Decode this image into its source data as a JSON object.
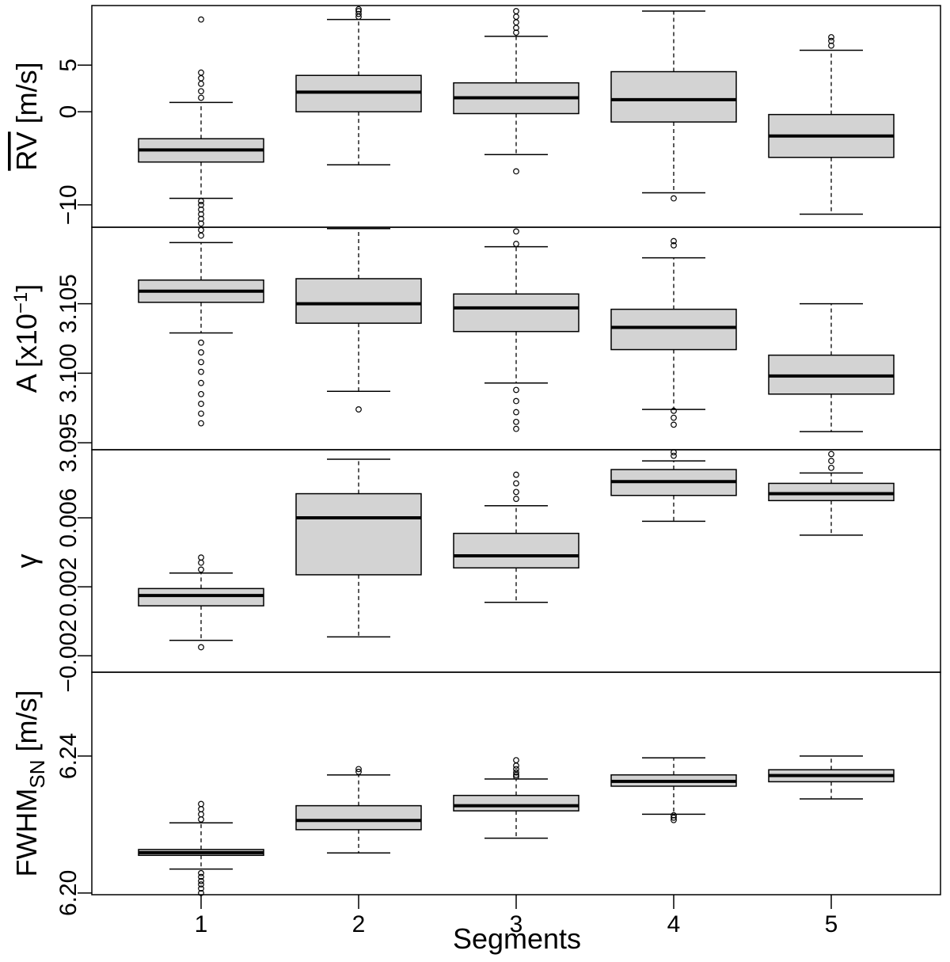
{
  "chart_data": {
    "type": "box",
    "title": "",
    "xlabel": "Segments",
    "categories": [
      "1",
      "2",
      "3",
      "4",
      "5"
    ],
    "panels": [
      {
        "id": "rv",
        "ylabel_main": "RV",
        "ylabel_unit": " [m/s]",
        "ylim": [
          -12.4,
          11.4
        ],
        "ticks": [
          -10,
          0,
          5
        ],
        "tick_labels": [
          "−10",
          "0",
          "5"
        ],
        "boxes": [
          {
            "category": "1",
            "whisker_low": -9.3,
            "q1": -5.4,
            "median": -4.1,
            "q3": -2.9,
            "whisker_high": 1.0,
            "outliers": [
              -12.0,
              -11.5,
              -11.0,
              -10.5,
              -10.0,
              -9.6,
              1.5,
              2.2,
              3.0,
              3.6,
              4.2,
              9.9
            ]
          },
          {
            "category": "2",
            "whisker_low": -5.7,
            "q1": 0.0,
            "median": 2.1,
            "q3": 3.9,
            "whisker_high": 9.9,
            "outliers": [
              10.2,
              10.5,
              10.8,
              11.0
            ]
          },
          {
            "category": "3",
            "whisker_low": -4.6,
            "q1": -0.2,
            "median": 1.5,
            "q3": 3.1,
            "whisker_high": 8.1,
            "outliers": [
              -6.4,
              8.5,
              9.0,
              9.6,
              10.2,
              10.8
            ]
          },
          {
            "category": "4",
            "whisker_low": -8.7,
            "q1": -1.1,
            "median": 1.3,
            "q3": 4.3,
            "whisker_high": 10.8,
            "outliers": [
              -9.3
            ]
          },
          {
            "category": "5",
            "whisker_low": -11.0,
            "q1": -4.9,
            "median": -2.6,
            "q3": -0.3,
            "whisker_high": 6.6,
            "outliers": [
              7.1,
              7.6,
              8.0
            ]
          }
        ]
      },
      {
        "id": "A",
        "ylabel_main": "A [x10",
        "ylabel_sup": "−1",
        "ylabel_end": "]",
        "ylim": [
          3.0945,
          3.1105
        ],
        "ticks": [
          3.095,
          3.1,
          3.105
        ],
        "tick_labels": [
          "3.095",
          "3.100",
          "3.105"
        ],
        "boxes": [
          {
            "category": "1",
            "whisker_low": 3.1029,
            "q1": 3.1051,
            "median": 3.1059,
            "q3": 3.1067,
            "whisker_high": 3.1094,
            "outliers": [
              3.0964,
              3.0971,
              3.0978,
              3.0985,
              3.0993,
              3.1001,
              3.1008,
              3.1015,
              3.1022,
              3.1099,
              3.1103
            ]
          },
          {
            "category": "2",
            "whisker_low": 3.0987,
            "q1": 3.1036,
            "median": 3.105,
            "q3": 3.1068,
            "whisker_high": 3.1104,
            "outliers": [
              3.0974
            ]
          },
          {
            "category": "3",
            "whisker_low": 3.0993,
            "q1": 3.103,
            "median": 3.1047,
            "q3": 3.1057,
            "whisker_high": 3.1091,
            "outliers": [
              3.096,
              3.0965,
              3.0972,
              3.098,
              3.0988,
              3.1093,
              3.1102
            ]
          },
          {
            "category": "4",
            "whisker_low": 3.0974,
            "q1": 3.1017,
            "median": 3.1033,
            "q3": 3.1046,
            "whisker_high": 3.1083,
            "outliers": [
              3.0963,
              3.0968,
              3.0973,
              3.1092,
              3.1095
            ]
          },
          {
            "category": "5",
            "whisker_low": 3.0958,
            "q1": 3.0985,
            "median": 3.0998,
            "q3": 3.1013,
            "whisker_high": 3.105,
            "outliers": []
          }
        ]
      },
      {
        "id": "gamma",
        "ylabel_main": "γ",
        "ylim": [
          -0.00295,
          0.00995
        ],
        "ticks": [
          -0.002,
          0.002,
          0.006
        ],
        "tick_labels": [
          "−0.002",
          "0.002",
          "0.006"
        ],
        "boxes": [
          {
            "category": "1",
            "whisker_low": -0.0011,
            "q1": 0.0009,
            "median": 0.0015,
            "q3": 0.0019,
            "whisker_high": 0.0028,
            "outliers": [
              -0.0015,
              0.003,
              0.0034,
              0.0037
            ]
          },
          {
            "category": "2",
            "whisker_low": -0.0009,
            "q1": 0.0027,
            "median": 0.006,
            "q3": 0.0074,
            "whisker_high": 0.0094,
            "outliers": []
          },
          {
            "category": "3",
            "whisker_low": 0.0011,
            "q1": 0.0031,
            "median": 0.0038,
            "q3": 0.0051,
            "whisker_high": 0.0067,
            "outliers": [
              0.0071,
              0.0075,
              0.008,
              0.0085
            ]
          },
          {
            "category": "4",
            "whisker_low": 0.0058,
            "q1": 0.0073,
            "median": 0.0081,
            "q3": 0.0088,
            "whisker_high": 0.0093,
            "outliers": [
              0.0096,
              0.0098
            ]
          },
          {
            "category": "5",
            "whisker_low": 0.005,
            "q1": 0.007,
            "median": 0.0074,
            "q3": 0.008,
            "whisker_high": 0.0086,
            "outliers": [
              0.0089,
              0.0093,
              0.0097
            ]
          }
        ]
      },
      {
        "id": "fwhm",
        "ylabel_main": "FWHM",
        "ylabel_sub": "SN",
        "ylabel_unit": " [m/s]",
        "ylim": [
          6.1995,
          6.2645
        ],
        "ticks": [
          6.2,
          6.24
        ],
        "tick_labels": [
          "6.20",
          "6.24"
        ],
        "boxes": [
          {
            "category": "1",
            "whisker_low": 6.207,
            "q1": 6.211,
            "median": 6.2118,
            "q3": 6.2127,
            "whisker_high": 6.2205,
            "outliers": [
              6.2,
              6.2013,
              6.2025,
              6.2035,
              6.2047,
              6.2058,
              6.2215,
              6.223,
              6.2245,
              6.226
            ]
          },
          {
            "category": "2",
            "whisker_low": 6.2117,
            "q1": 6.2185,
            "median": 6.2212,
            "q3": 6.2255,
            "whisker_high": 6.2345,
            "outliers": [
              6.2354,
              6.2362
            ]
          },
          {
            "category": "3",
            "whisker_low": 6.216,
            "q1": 6.224,
            "median": 6.2255,
            "q3": 6.2285,
            "whisker_high": 6.2333,
            "outliers": [
              6.234,
              6.2345,
              6.2352,
              6.2362,
              6.2372,
              6.2388
            ]
          },
          {
            "category": "4",
            "whisker_low": 6.223,
            "q1": 6.2312,
            "median": 6.2326,
            "q3": 6.2345,
            "whisker_high": 6.2395,
            "outliers": [
              6.2213,
              6.222,
              6.2227
            ]
          },
          {
            "category": "5",
            "whisker_low": 6.2275,
            "q1": 6.2325,
            "median": 6.2343,
            "q3": 6.236,
            "whisker_high": 6.24,
            "outliers": []
          }
        ]
      }
    ]
  }
}
